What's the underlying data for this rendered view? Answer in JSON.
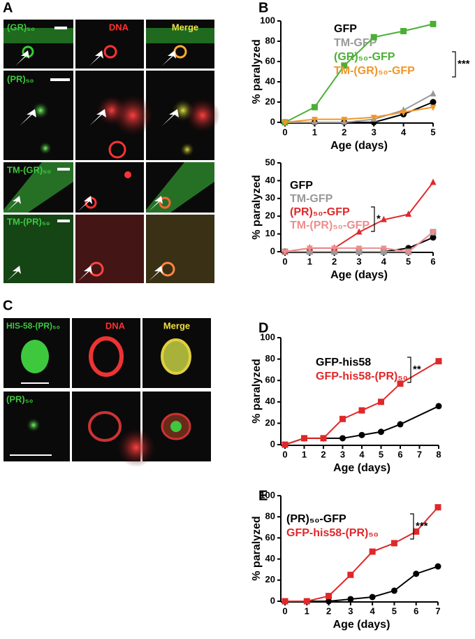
{
  "panel_labels": [
    "A",
    "B",
    "C",
    "D",
    "E"
  ],
  "panel_a": {
    "channel_labels": [
      "DNA",
      "Merge"
    ],
    "row_labels": [
      "(GR)₅₀",
      "(PR)₅₀",
      "TM-(GR)₅₀",
      "TM-(PR)₅₀"
    ]
  },
  "panel_c": {
    "channel_labels": [
      "DNA",
      "Merge"
    ],
    "row_labels": [
      "HIS-58-(PR)₅₀",
      "(PR)₅₀"
    ]
  },
  "chart_data": [
    {
      "type": "line",
      "xlabel": "Age (days)",
      "ylabel": "% paralyzed",
      "significance": "***",
      "x": [
        0,
        1,
        2,
        3,
        4,
        5
      ],
      "xlim": [
        0,
        5
      ],
      "xticks": [
        0,
        1,
        2,
        3,
        4,
        5
      ],
      "ylim": [
        0,
        100
      ],
      "yticks": [
        0,
        20,
        40,
        60,
        80,
        100
      ],
      "series": [
        {
          "name": "GFP",
          "color": "#000000",
          "marker": "circle",
          "values": [
            0,
            0,
            0,
            0,
            8,
            20
          ]
        },
        {
          "name": "TM-GFP",
          "color": "#999999",
          "marker": "triangle",
          "values": [
            0,
            0,
            0,
            3,
            12,
            28
          ]
        },
        {
          "name": "(GR)₅₀-GFP",
          "color": "#4caf35",
          "marker": "square",
          "values": [
            0,
            15,
            56,
            84,
            90,
            97
          ]
        },
        {
          "name": "TM-(GR)₅₀-GFP",
          "color": "#f0962a",
          "marker": "triangle-down",
          "values": [
            0,
            3,
            3,
            5,
            10,
            15
          ]
        }
      ]
    },
    {
      "type": "line",
      "xlabel": "Age (days)",
      "ylabel": "% paralyzed",
      "significance": "*",
      "x": [
        0,
        1,
        2,
        3,
        4,
        5,
        6
      ],
      "xlim": [
        0,
        6
      ],
      "xticks": [
        0,
        1,
        2,
        3,
        4,
        5,
        6
      ],
      "ylim": [
        0,
        50
      ],
      "yticks": [
        0,
        10,
        20,
        30,
        40,
        50
      ],
      "series": [
        {
          "name": "GFP",
          "color": "#000000",
          "marker": "circle",
          "values": [
            0,
            0,
            0,
            0,
            0,
            2,
            8
          ]
        },
        {
          "name": "TM-GFP",
          "color": "#999999",
          "marker": "square",
          "values": [
            0,
            0,
            0,
            0,
            0,
            0,
            11
          ]
        },
        {
          "name": "(PR)₅₀-GFP",
          "color": "#e0282a",
          "marker": "triangle",
          "values": [
            0,
            2,
            2,
            11,
            18,
            21,
            39
          ]
        },
        {
          "name": "TM-(PR)₅₀-GFP",
          "color": "#f08c8c",
          "marker": "triangle-down",
          "values": [
            0,
            2,
            2,
            2,
            2,
            0,
            11
          ]
        }
      ]
    },
    {
      "type": "line",
      "xlabel": "Age (days)",
      "ylabel": "% paralyzed",
      "significance": "**",
      "x": [
        0,
        1,
        2,
        3,
        4,
        5,
        6,
        8
      ],
      "xlim": [
        0,
        8
      ],
      "xticks": [
        0,
        1,
        2,
        3,
        4,
        5,
        6,
        7,
        8
      ],
      "ylim": [
        0,
        100
      ],
      "yticks": [
        0,
        20,
        40,
        60,
        80,
        100
      ],
      "series": [
        {
          "name": "GFP-his58",
          "color": "#000000",
          "marker": "circle",
          "values": [
            0,
            6,
            6,
            6,
            9,
            12,
            19,
            36
          ]
        },
        {
          "name": "GFP-his58-(PR)₅₀",
          "color": "#e0282a",
          "marker": "square",
          "values": [
            0,
            6,
            6,
            24,
            32,
            40,
            57,
            78
          ]
        }
      ]
    },
    {
      "type": "line",
      "xlabel": "Age (days)",
      "ylabel": "% paralyzed",
      "significance": "***",
      "x": [
        0,
        1,
        2,
        3,
        4,
        5,
        6,
        7
      ],
      "xlim": [
        0,
        7
      ],
      "xticks": [
        0,
        1,
        2,
        3,
        4,
        5,
        6,
        7
      ],
      "ylim": [
        0,
        100
      ],
      "yticks": [
        0,
        20,
        40,
        60,
        80,
        100
      ],
      "series": [
        {
          "name": "(PR)₅₀-GFP",
          "color": "#000000",
          "marker": "circle",
          "values": [
            0,
            0,
            0,
            2,
            4,
            10,
            26,
            33
          ]
        },
        {
          "name": "GFP-his58-(PR)₅₀",
          "color": "#e0282a",
          "marker": "square",
          "values": [
            0,
            0,
            5,
            25,
            47,
            55,
            66,
            89
          ]
        }
      ]
    }
  ]
}
